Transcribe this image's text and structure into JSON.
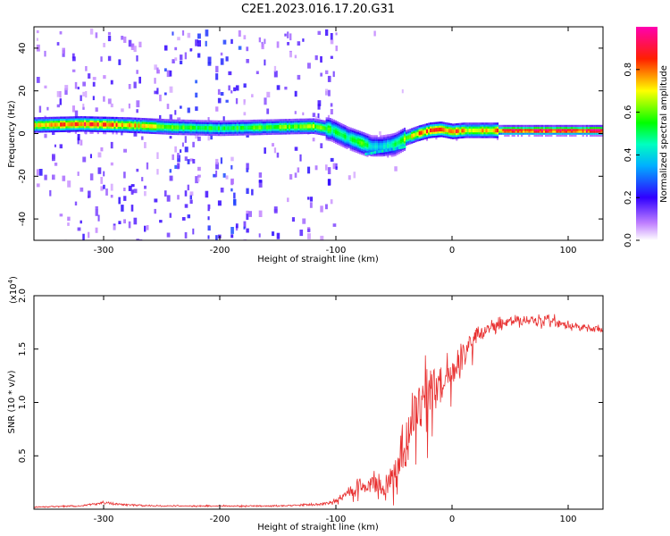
{
  "figure": {
    "title": "C2E1.2023.016.17.20.G31"
  },
  "chart_data": [
    {
      "type": "heatmap",
      "title": "C2E1.2023.016.17.20.G31",
      "xlabel": "Height of straight line (km)",
      "ylabel": "Frequency (Hz)",
      "xlim": [
        -360,
        130
      ],
      "ylim": [
        -50,
        50
      ],
      "xticks": [
        -300,
        -200,
        -100,
        0,
        100
      ],
      "yticks": [
        -40,
        -20,
        0,
        20,
        40
      ],
      "colorbar": {
        "label": "Normalized spectral amplitude",
        "range": [
          0,
          1
        ],
        "ticks": [
          "0.0",
          "0.2",
          "0.4",
          "0.6",
          "0.8"
        ],
        "colormap": [
          "#ffffff",
          "#8000ff",
          "#0000ff",
          "#00e0ff",
          "#00ff00",
          "#ffff00",
          "#ff0000",
          "#ff00c0"
        ]
      },
      "ridge": {
        "x": [
          -360,
          -320,
          -280,
          -240,
          -200,
          -160,
          -120,
          -105,
          -90,
          -80,
          -70,
          -60,
          -50,
          -40,
          -30,
          -20,
          -10,
          0,
          10,
          30,
          50,
          130
        ],
        "y": [
          4,
          4.5,
          4,
          3,
          2.5,
          3,
          3.5,
          2,
          -2,
          -4,
          -6,
          -6,
          -5,
          -2,
          0,
          1.5,
          2,
          1,
          1.5,
          1.5,
          1.5,
          1.5
        ],
        "peak": [
          0.75,
          0.9,
          0.8,
          0.6,
          0.55,
          0.6,
          0.65,
          0.55,
          0.5,
          0.6,
          0.45,
          0.4,
          0.5,
          0.65,
          0.8,
          0.85,
          0.85,
          0.9,
          0.75,
          0.75,
          0.95,
          0.95
        ]
      },
      "grid": false
    },
    {
      "type": "line",
      "xlabel": "Height of straight line (km)",
      "ylabel": "SNR (10 * v/v)",
      "y_exponent_label": "(x10",
      "y_exponent_sup": "4",
      "y_exponent_close": ")",
      "xlim": [
        -360,
        130
      ],
      "ylim": [
        0,
        2.0
      ],
      "xticks": [
        -300,
        -200,
        -100,
        0,
        100
      ],
      "yticks": [
        "0.5",
        "1.0",
        "1.5",
        "2.0"
      ],
      "color": "#e83030",
      "series": [
        {
          "x": [
            -360,
            -320,
            -300,
            -280,
            -250,
            -200,
            -150,
            -110,
            -100,
            -90,
            -80,
            -70,
            -60,
            -50,
            -45,
            -40,
            -35,
            -30,
            -25,
            -20,
            -15,
            -10,
            -5,
            0,
            5,
            10,
            15,
            20,
            30,
            40,
            50,
            60,
            70,
            80,
            90,
            100,
            110,
            120,
            130
          ],
          "y": [
            0.02,
            0.03,
            0.06,
            0.04,
            0.03,
            0.03,
            0.03,
            0.05,
            0.08,
            0.15,
            0.2,
            0.25,
            0.22,
            0.3,
            0.45,
            0.6,
            0.75,
            0.9,
            1.0,
            1.05,
            1.1,
            1.15,
            1.2,
            1.3,
            1.35,
            1.45,
            1.55,
            1.62,
            1.7,
            1.72,
            1.76,
            1.77,
            1.76,
            1.76,
            1.75,
            1.72,
            1.7,
            1.7,
            1.68
          ],
          "noise": [
            0.01,
            0.01,
            0.02,
            0.015,
            0.01,
            0.01,
            0.01,
            0.02,
            0.05,
            0.1,
            0.12,
            0.15,
            0.18,
            0.25,
            0.35,
            0.45,
            0.5,
            0.5,
            0.45,
            0.4,
            0.35,
            0.3,
            0.28,
            0.25,
            0.22,
            0.18,
            0.15,
            0.12,
            0.1,
            0.09,
            0.08,
            0.08,
            0.08,
            0.08,
            0.07,
            0.07,
            0.06,
            0.06,
            0.05
          ]
        }
      ],
      "grid": false
    }
  ]
}
